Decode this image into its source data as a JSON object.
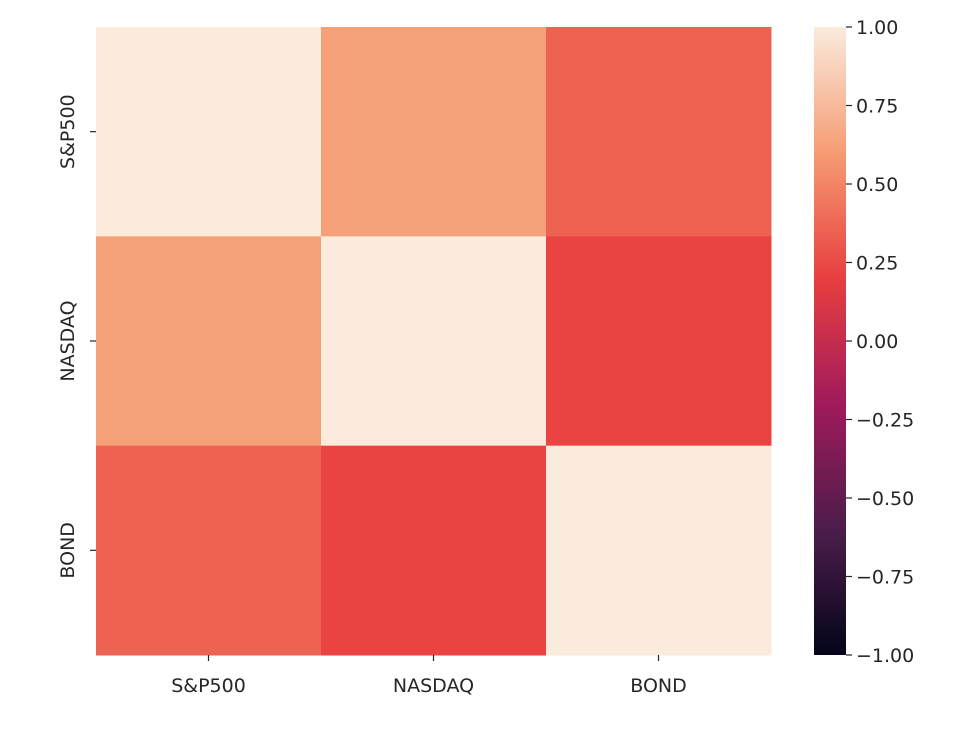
{
  "chart_data": {
    "type": "heatmap",
    "title": "",
    "xlabel": "",
    "ylabel": "",
    "x_categories": [
      "S&P500",
      "NASDAQ",
      "BOND"
    ],
    "y_categories": [
      "S&P500",
      "NASDAQ",
      "BOND"
    ],
    "values": [
      [
        1.0,
        0.62,
        0.35
      ],
      [
        0.62,
        1.0,
        0.22
      ],
      [
        0.35,
        0.22,
        1.0
      ]
    ],
    "colorbar": {
      "vmin": -1.0,
      "vmax": 1.0,
      "ticks": [
        1.0,
        0.75,
        0.5,
        0.25,
        0.0,
        -0.25,
        -0.5,
        -0.75,
        -1.0
      ],
      "tick_labels": [
        "1.00",
        "0.75",
        "0.50",
        "0.25",
        "0.00",
        "−0.25",
        "−0.50",
        "−0.75",
        "−1.00"
      ],
      "colormap": "rocket",
      "colormap_stops": [
        "#03051a",
        "#4c1d4b",
        "#a11a5b",
        "#e83f3f",
        "#f69c73",
        "#faebdd"
      ]
    },
    "grid": false,
    "legend": "colorbar-right"
  }
}
